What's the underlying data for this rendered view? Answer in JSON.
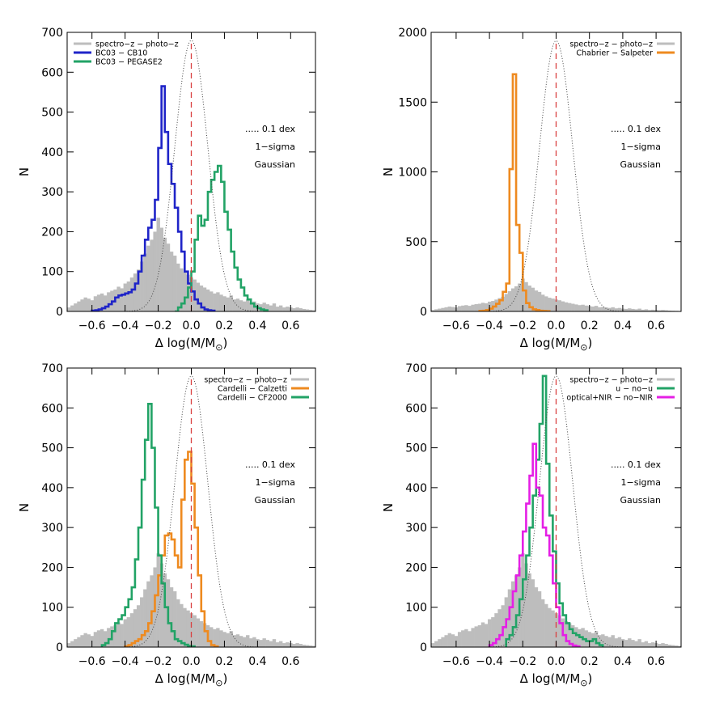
{
  "figure": {
    "xlabel_prefix": "Δ log(M/M",
    "xlabel_sub": "⊙",
    "xlabel_suffix": ")",
    "ylabel": "N"
  },
  "colors": {
    "grey": "#bdbdbd",
    "blue": "#1f24c8",
    "green": "#22a366",
    "orange": "#ee8a1f",
    "magenta": "#e51fe5",
    "red_dash": "#d94040",
    "gauss": "#444444"
  },
  "chart_data": [
    {
      "type": "histogram",
      "id": "top-left",
      "xlim": [
        -0.75,
        0.75
      ],
      "ylim": [
        0,
        700
      ],
      "xticks": [
        -0.6,
        -0.4,
        -0.2,
        0.0,
        0.2,
        0.4,
        0.6
      ],
      "xtick_labels": [
        "−0.6",
        "−0.4",
        "−0.2",
        "0.0",
        "0.2",
        "0.4",
        "0.6"
      ],
      "yticks": [
        0,
        100,
        200,
        300,
        400,
        500,
        600,
        700
      ],
      "ytick_labels": [
        "0",
        "100",
        "200",
        "300",
        "400",
        "500",
        "600",
        "700"
      ],
      "xlabel": "Δ log(M/M⊙)",
      "ylabel": "N",
      "legend": [
        {
          "label": "spectro−z − photo−z",
          "color": "grey"
        },
        {
          "label": "BC03 − CB10",
          "color": "blue"
        },
        {
          "label": "BC03 − PEGASE2",
          "color": "green"
        }
      ],
      "legend_position": "top-left",
      "annotation": [
        "..... 0.1 dex",
        "1−sigma",
        "Gaussian"
      ],
      "gaussian": {
        "mu": 0.0,
        "sigma": 0.1,
        "peak": 680
      },
      "vline_x": 0.0,
      "series": [
        {
          "name": "spectro−z − photo−z",
          "style": "filled",
          "color": "grey",
          "bin_start": -0.75,
          "bin_width": 0.02,
          "values": [
            10,
            15,
            20,
            25,
            30,
            35,
            32,
            28,
            38,
            42,
            45,
            40,
            48,
            52,
            55,
            62,
            58,
            70,
            75,
            85,
            95,
            105,
            125,
            145,
            165,
            180,
            200,
            235,
            210,
            185,
            170,
            150,
            140,
            120,
            108,
            98,
            92,
            85,
            80,
            72,
            65,
            60,
            55,
            50,
            45,
            48,
            42,
            38,
            35,
            40,
            30,
            32,
            28,
            25,
            30,
            22,
            25,
            20,
            18,
            22,
            18,
            15,
            20,
            12,
            15,
            10,
            12,
            10,
            8,
            10,
            8,
            6,
            5,
            4,
            3
          ]
        },
        {
          "name": "BC03 − CB10",
          "style": "step",
          "color": "blue",
          "bin_start": -0.6,
          "bin_width": 0.02,
          "values": [
            2,
            3,
            5,
            8,
            12,
            18,
            25,
            35,
            40,
            42,
            45,
            48,
            55,
            70,
            100,
            140,
            180,
            210,
            230,
            280,
            410,
            565,
            450,
            370,
            320,
            260,
            200,
            150,
            100,
            70,
            50,
            30,
            20,
            10,
            5,
            3,
            2
          ]
        },
        {
          "name": "BC03 − PEGASE2",
          "style": "step",
          "color": "green",
          "bin_start": -0.1,
          "bin_width": 0.02,
          "values": [
            0,
            10,
            20,
            35,
            60,
            100,
            180,
            240,
            215,
            230,
            300,
            330,
            350,
            365,
            325,
            250,
            205,
            150,
            110,
            80,
            60,
            40,
            30,
            20,
            12,
            8,
            5,
            3
          ]
        }
      ]
    },
    {
      "type": "histogram",
      "id": "top-right",
      "xlim": [
        -0.75,
        0.75
      ],
      "ylim": [
        0,
        2000
      ],
      "xticks": [
        -0.6,
        -0.4,
        -0.2,
        0.0,
        0.2,
        0.4,
        0.6
      ],
      "xtick_labels": [
        "−0.6",
        "−0.4",
        "−0.2",
        "0.0",
        "0.2",
        "0.4",
        "0.6"
      ],
      "yticks": [
        0,
        500,
        1000,
        1500,
        2000
      ],
      "ytick_labels": [
        "0",
        "500",
        "1000",
        "1500",
        "2000"
      ],
      "xlabel": "Δ log(M/M⊙)",
      "ylabel": "N",
      "legend": [
        {
          "label": "spectro−z − photo−z",
          "color": "grey"
        },
        {
          "label": "Chabrier − Salpeter",
          "color": "orange"
        }
      ],
      "legend_position": "top-right",
      "annotation": [
        "..... 0.1 dex",
        "1−sigma",
        "Gaussian"
      ],
      "gaussian": {
        "mu": 0.0,
        "sigma": 0.1,
        "peak": 1940
      },
      "vline_x": 0.0,
      "series": [
        {
          "name": "spectro−z − photo−z",
          "style": "filled",
          "color": "grey",
          "bin_start": -0.75,
          "bin_width": 0.02,
          "values": [
            10,
            15,
            20,
            25,
            30,
            35,
            32,
            28,
            38,
            42,
            45,
            40,
            48,
            52,
            55,
            62,
            58,
            70,
            75,
            85,
            95,
            105,
            125,
            145,
            165,
            180,
            200,
            235,
            210,
            185,
            170,
            150,
            140,
            120,
            108,
            98,
            92,
            85,
            80,
            72,
            65,
            60,
            55,
            50,
            45,
            48,
            42,
            38,
            35,
            40,
            30,
            32,
            28,
            25,
            30,
            22,
            25,
            20,
            18,
            22,
            18,
            15,
            20,
            12,
            15,
            10,
            12,
            10,
            8,
            10,
            8,
            6,
            5,
            4,
            3
          ]
        },
        {
          "name": "Chabrier − Salpeter",
          "style": "step",
          "color": "orange",
          "bin_start": -0.46,
          "bin_width": 0.02,
          "values": [
            3,
            5,
            10,
            20,
            35,
            55,
            80,
            140,
            200,
            1020,
            1700,
            620,
            420,
            150,
            60,
            30,
            15,
            10,
            5,
            3,
            2
          ]
        }
      ]
    },
    {
      "type": "histogram",
      "id": "bottom-left",
      "xlim": [
        -0.75,
        0.75
      ],
      "ylim": [
        0,
        700
      ],
      "xticks": [
        -0.6,
        -0.4,
        -0.2,
        0.0,
        0.2,
        0.4,
        0.6
      ],
      "xtick_labels": [
        "−0.6",
        "−0.4",
        "−0.2",
        "0.0",
        "0.2",
        "0.4",
        "0.6"
      ],
      "yticks": [
        0,
        100,
        200,
        300,
        400,
        500,
        600,
        700
      ],
      "ytick_labels": [
        "0",
        "100",
        "200",
        "300",
        "400",
        "500",
        "600",
        "700"
      ],
      "xlabel": "Δ log(M/M⊙)",
      "ylabel": "N",
      "legend": [
        {
          "label": "spectro−z − photo−z",
          "color": "grey"
        },
        {
          "label": "Cardelli − Calzetti",
          "color": "orange"
        },
        {
          "label": "Cardelli − CF2000",
          "color": "green"
        }
      ],
      "legend_position": "top-right",
      "annotation": [
        "..... 0.1 dex",
        "1−sigma",
        "Gaussian"
      ],
      "gaussian": {
        "mu": 0.0,
        "sigma": 0.1,
        "peak": 680
      },
      "vline_x": 0.0,
      "series": [
        {
          "name": "spectro−z − photo−z",
          "style": "filled",
          "color": "grey",
          "bin_start": -0.75,
          "bin_width": 0.02,
          "values": [
            10,
            15,
            20,
            25,
            30,
            35,
            32,
            28,
            38,
            42,
            45,
            40,
            48,
            52,
            55,
            62,
            58,
            70,
            75,
            85,
            95,
            105,
            125,
            145,
            165,
            180,
            200,
            235,
            210,
            185,
            170,
            150,
            140,
            120,
            108,
            98,
            92,
            85,
            80,
            72,
            65,
            60,
            55,
            50,
            45,
            48,
            42,
            38,
            35,
            40,
            30,
            32,
            28,
            25,
            30,
            22,
            25,
            20,
            18,
            22,
            18,
            15,
            20,
            12,
            15,
            10,
            12,
            10,
            8,
            10,
            8,
            6,
            5,
            4,
            3
          ]
        },
        {
          "name": "Cardelli − Calzetti",
          "style": "step",
          "color": "orange",
          "bin_start": -0.4,
          "bin_width": 0.02,
          "values": [
            2,
            5,
            10,
            15,
            20,
            30,
            40,
            60,
            90,
            130,
            180,
            230,
            280,
            285,
            270,
            230,
            200,
            370,
            470,
            490,
            410,
            300,
            180,
            90,
            40,
            15,
            5,
            2
          ]
        },
        {
          "name": "Cardelli − CF2000",
          "style": "step",
          "color": "green",
          "bin_start": -0.54,
          "bin_width": 0.02,
          "values": [
            5,
            10,
            20,
            40,
            60,
            70,
            80,
            100,
            120,
            150,
            220,
            300,
            420,
            520,
            610,
            500,
            350,
            230,
            160,
            100,
            60,
            40,
            20,
            15,
            10,
            6,
            3,
            2
          ]
        }
      ]
    },
    {
      "type": "histogram",
      "id": "bottom-right",
      "xlim": [
        -0.75,
        0.75
      ],
      "ylim": [
        0,
        700
      ],
      "xticks": [
        -0.6,
        -0.4,
        -0.2,
        0.0,
        0.2,
        0.4,
        0.6
      ],
      "xtick_labels": [
        "−0.6",
        "−0.4",
        "−0.2",
        "0.0",
        "0.2",
        "0.4",
        "0.6"
      ],
      "yticks": [
        0,
        100,
        200,
        300,
        400,
        500,
        600,
        700
      ],
      "ytick_labels": [
        "0",
        "100",
        "200",
        "300",
        "400",
        "500",
        "600",
        "700"
      ],
      "xlabel": "Δ log(M/M⊙)",
      "ylabel": "N",
      "legend": [
        {
          "label": "spectro−z − photo−z",
          "color": "grey"
        },
        {
          "label": "u − no−u",
          "color": "green"
        },
        {
          "label": "optical+NIR − no−NIR",
          "color": "magenta"
        }
      ],
      "legend_position": "top-right",
      "annotation": [
        "..... 0.1 dex",
        "1−sigma",
        "Gaussian"
      ],
      "gaussian": {
        "mu": 0.0,
        "sigma": 0.1,
        "peak": 680
      },
      "vline_x": 0.0,
      "series": [
        {
          "name": "spectro−z − photo−z",
          "style": "filled",
          "color": "grey",
          "bin_start": -0.75,
          "bin_width": 0.02,
          "values": [
            10,
            15,
            20,
            25,
            30,
            35,
            32,
            28,
            38,
            42,
            45,
            40,
            48,
            52,
            55,
            62,
            58,
            70,
            75,
            85,
            95,
            105,
            125,
            145,
            165,
            180,
            200,
            235,
            210,
            185,
            170,
            150,
            140,
            120,
            108,
            98,
            92,
            85,
            80,
            72,
            65,
            60,
            55,
            50,
            45,
            48,
            42,
            38,
            35,
            40,
            30,
            32,
            28,
            25,
            30,
            22,
            25,
            20,
            18,
            22,
            18,
            15,
            20,
            12,
            15,
            10,
            12,
            10,
            8,
            10,
            8,
            6,
            5,
            4,
            3
          ]
        },
        {
          "name": "u − no−u",
          "style": "step",
          "color": "green",
          "bin_start": -0.3,
          "bin_width": 0.02,
          "values": [
            20,
            30,
            50,
            80,
            120,
            170,
            230,
            300,
            380,
            470,
            560,
            680,
            460,
            330,
            240,
            160,
            110,
            80,
            60,
            45,
            35,
            30,
            25,
            20,
            15,
            15,
            20,
            10,
            5
          ]
        },
        {
          "name": "optical+NIR − no−NIR",
          "style": "step",
          "color": "magenta",
          "bin_start": -0.4,
          "bin_width": 0.02,
          "values": [
            5,
            10,
            20,
            30,
            50,
            70,
            100,
            140,
            180,
            230,
            290,
            360,
            430,
            510,
            400,
            380,
            300,
            280,
            230,
            160,
            100,
            60,
            30,
            15,
            8,
            4,
            2
          ]
        }
      ]
    }
  ]
}
